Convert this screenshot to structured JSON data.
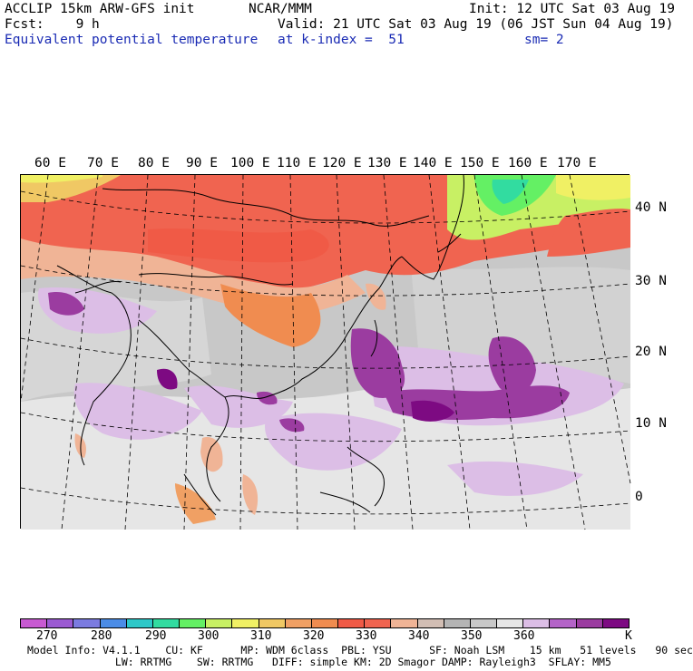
{
  "header": {
    "model_title": "ACCLIP 15km ARW-GFS init",
    "center": "NCAR/MMM",
    "init": "Init: 12 UTC Sat 03 Aug 19",
    "fcst": "Fcst:    9 h",
    "valid": "Valid: 21 UTC Sat 03 Aug 19 (06 JST Sun 04 Aug 19)",
    "field": "Equivalent potential temperature",
    "level": "at k-index =  51",
    "smooth": "sm= 2"
  },
  "map": {
    "lon_labels": [
      "60 E",
      "70 E",
      "80 E",
      "90 E",
      "100 E",
      "110 E",
      "120 E",
      "130 E",
      "140 E",
      "150 E",
      "160 E",
      "170 E"
    ],
    "lat_labels": [
      "40 N",
      "30 N",
      "20 N",
      "10 N",
      "0"
    ]
  },
  "colorbar": {
    "colors": [
      "#c85ad2",
      "#9b5ad2",
      "#7b7be0",
      "#4b8ce6",
      "#2ec8c8",
      "#32dca0",
      "#64f064",
      "#c8f064",
      "#f0f064",
      "#f0c864",
      "#f0a064",
      "#f08c50",
      "#f05a46",
      "#f06450",
      "#f0b496",
      "#d2beb4",
      "#b4b4b4",
      "#c8c8c8",
      "#e6e6e6",
      "#dcbee6",
      "#b464c8",
      "#9b3ca0",
      "#7d0a82"
    ],
    "labels": [
      "270",
      "280",
      "290",
      "300",
      "310",
      "320",
      "330",
      "340",
      "350",
      "360"
    ],
    "unit": "K"
  },
  "footer": {
    "line1": "Model Info: V4.1.1    CU: KF      MP: WDM 6class  PBL: YSU      SF: Noah LSM    15 km   51 levels   90 sec",
    "line2": "              LW: RRTMG    SW: RRTMG   DIFF: simple KM: 2D Smagor DAMP: Rayleigh3  SFLAY: MM5"
  }
}
